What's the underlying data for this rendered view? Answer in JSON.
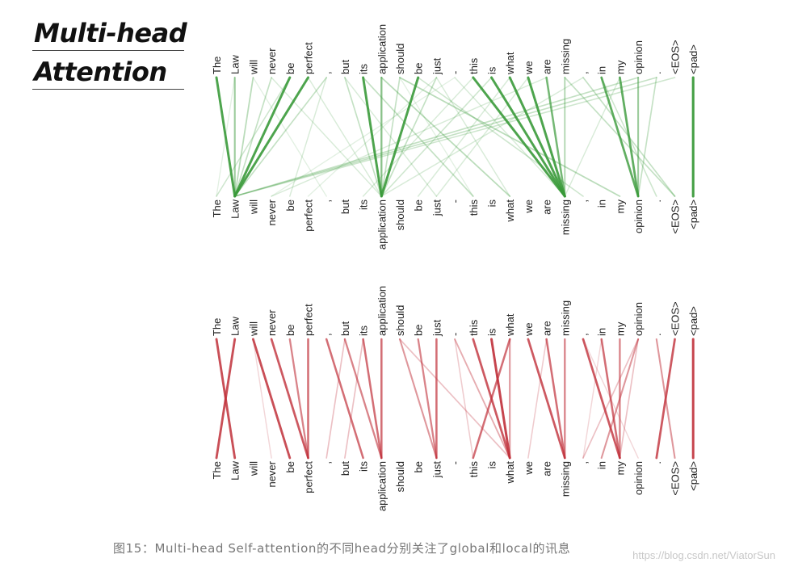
{
  "title": {
    "line1": "Multi-head",
    "line2": "Attention"
  },
  "tokens": [
    "The",
    "Law",
    "will",
    "never",
    "be",
    "perfect",
    ",",
    "but",
    "its",
    "application",
    "should",
    "be",
    "just",
    "-",
    "this",
    "is",
    "what",
    "we",
    "are",
    "missing",
    ",",
    "in",
    "my",
    "opinion",
    ".",
    "<EOS>",
    "<pad>"
  ],
  "heads": [
    {
      "name": "global",
      "color": "#3a9a3a",
      "links": [
        [
          0,
          1,
          0.9
        ],
        [
          1,
          1,
          0.5
        ],
        [
          2,
          1,
          0.35
        ],
        [
          3,
          1,
          0.3
        ],
        [
          4,
          1,
          0.9
        ],
        [
          5,
          1,
          0.9
        ],
        [
          6,
          1,
          0.3
        ],
        [
          7,
          9,
          0.3
        ],
        [
          8,
          9,
          0.9
        ],
        [
          9,
          9,
          0.6
        ],
        [
          10,
          9,
          0.3
        ],
        [
          11,
          9,
          0.9
        ],
        [
          12,
          9,
          0.3
        ],
        [
          14,
          19,
          0.9
        ],
        [
          15,
          19,
          0.9
        ],
        [
          16,
          19,
          0.9
        ],
        [
          17,
          19,
          0.9
        ],
        [
          18,
          19,
          0.7
        ],
        [
          19,
          19,
          0.4
        ],
        [
          21,
          23,
          0.8
        ],
        [
          22,
          23,
          0.8
        ],
        [
          23,
          23,
          0.5
        ],
        [
          24,
          23,
          0.3
        ],
        [
          26,
          26,
          0.95
        ],
        [
          4,
          0,
          0.25
        ],
        [
          6,
          4,
          0.2
        ],
        [
          8,
          14,
          0.3
        ],
        [
          9,
          16,
          0.35
        ],
        [
          10,
          22,
          0.35
        ],
        [
          11,
          20,
          0.25
        ],
        [
          12,
          5,
          0.15
        ],
        [
          13,
          19,
          0.2
        ],
        [
          14,
          8,
          0.2
        ],
        [
          15,
          9,
          0.25
        ],
        [
          16,
          11,
          0.2
        ],
        [
          17,
          12,
          0.2
        ],
        [
          19,
          25,
          0.3
        ],
        [
          20,
          25,
          0.3
        ],
        [
          21,
          24,
          0.25
        ],
        [
          24,
          1,
          0.3
        ],
        [
          25,
          1,
          0.25
        ],
        [
          23,
          1,
          0.3
        ],
        [
          18,
          3,
          0.2
        ],
        [
          20,
          9,
          0.2
        ],
        [
          22,
          19,
          0.2
        ],
        [
          3,
          9,
          0.2
        ],
        [
          5,
          9,
          0.2
        ],
        [
          2,
          6,
          0.15
        ],
        [
          7,
          12,
          0.2
        ],
        [
          10,
          14,
          0.15
        ],
        [
          12,
          16,
          0.2
        ],
        [
          13,
          3,
          0.15
        ],
        [
          1,
          0,
          0.15
        ]
      ]
    },
    {
      "name": "local",
      "color": "#c0303a",
      "links": [
        [
          0,
          1,
          0.85
        ],
        [
          1,
          0,
          0.85
        ],
        [
          2,
          4,
          0.85
        ],
        [
          3,
          5,
          0.8
        ],
        [
          4,
          5,
          0.6
        ],
        [
          5,
          5,
          0.7
        ],
        [
          6,
          8,
          0.7
        ],
        [
          7,
          9,
          0.6
        ],
        [
          8,
          9,
          0.7
        ],
        [
          9,
          9,
          0.7
        ],
        [
          10,
          12,
          0.5
        ],
        [
          11,
          12,
          0.6
        ],
        [
          12,
          12,
          0.7
        ],
        [
          13,
          16,
          0.4
        ],
        [
          14,
          16,
          0.8
        ],
        [
          15,
          16,
          0.9
        ],
        [
          16,
          14,
          0.7
        ],
        [
          16,
          16,
          0.5
        ],
        [
          17,
          19,
          0.8
        ],
        [
          18,
          19,
          0.7
        ],
        [
          19,
          19,
          0.6
        ],
        [
          20,
          22,
          0.8
        ],
        [
          21,
          22,
          0.7
        ],
        [
          22,
          22,
          0.6
        ],
        [
          23,
          21,
          0.5
        ],
        [
          23,
          20,
          0.3
        ],
        [
          24,
          25,
          0.5
        ],
        [
          25,
          24,
          0.8
        ],
        [
          26,
          26,
          0.9
        ],
        [
          10,
          16,
          0.3
        ],
        [
          13,
          14,
          0.25
        ],
        [
          18,
          17,
          0.25
        ],
        [
          2,
          3,
          0.2
        ],
        [
          7,
          6,
          0.3
        ],
        [
          8,
          7,
          0.3
        ],
        [
          21,
          20,
          0.2
        ],
        [
          23,
          22,
          0.3
        ],
        [
          20,
          23,
          0.2
        ]
      ]
    }
  ],
  "caption": "图15：Multi-head Self-attention的不同head分别关注了global和local的讯息",
  "watermark": "https://blog.csdn.net/ViatorSun"
}
